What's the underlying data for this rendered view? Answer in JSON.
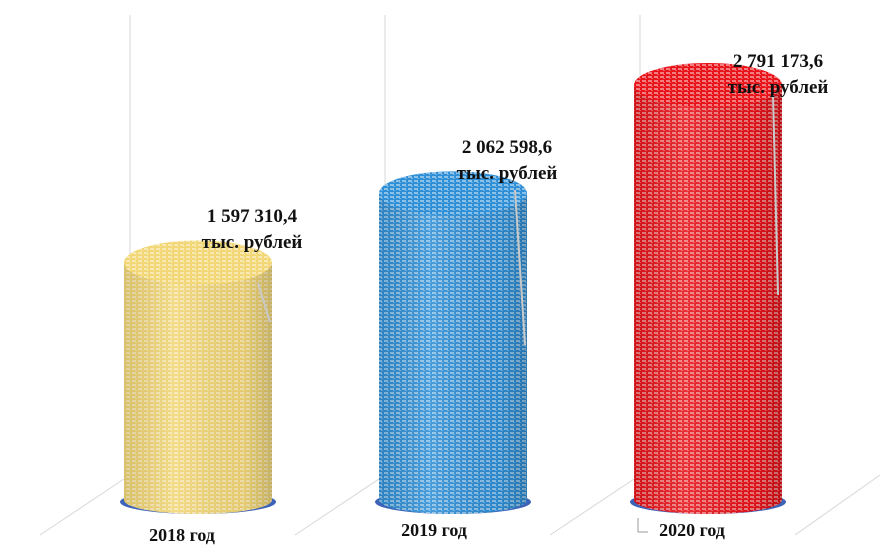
{
  "chart_data": {
    "type": "bar",
    "style": "3d-cylinder",
    "categories": [
      "2018 год",
      "2019 год",
      "2020 год"
    ],
    "values": [
      1597310.4,
      2062598.6,
      2791173.6
    ],
    "data_labels": [
      {
        "value": "1 597 310,4",
        "unit": "тыс. рублей"
      },
      {
        "value": "2 062 598,6",
        "unit": "тыс. рублей"
      },
      {
        "value": "2 791 173,6",
        "unit": "тыс. рублей"
      }
    ],
    "colors": [
      "#f2d673",
      "#2f8fd6",
      "#e8141a"
    ],
    "base_color": "#3d63b8",
    "title": "",
    "xlabel": "",
    "ylabel": "",
    "ylim": [
      0,
      3000000
    ],
    "grid": true,
    "legend": "none"
  }
}
